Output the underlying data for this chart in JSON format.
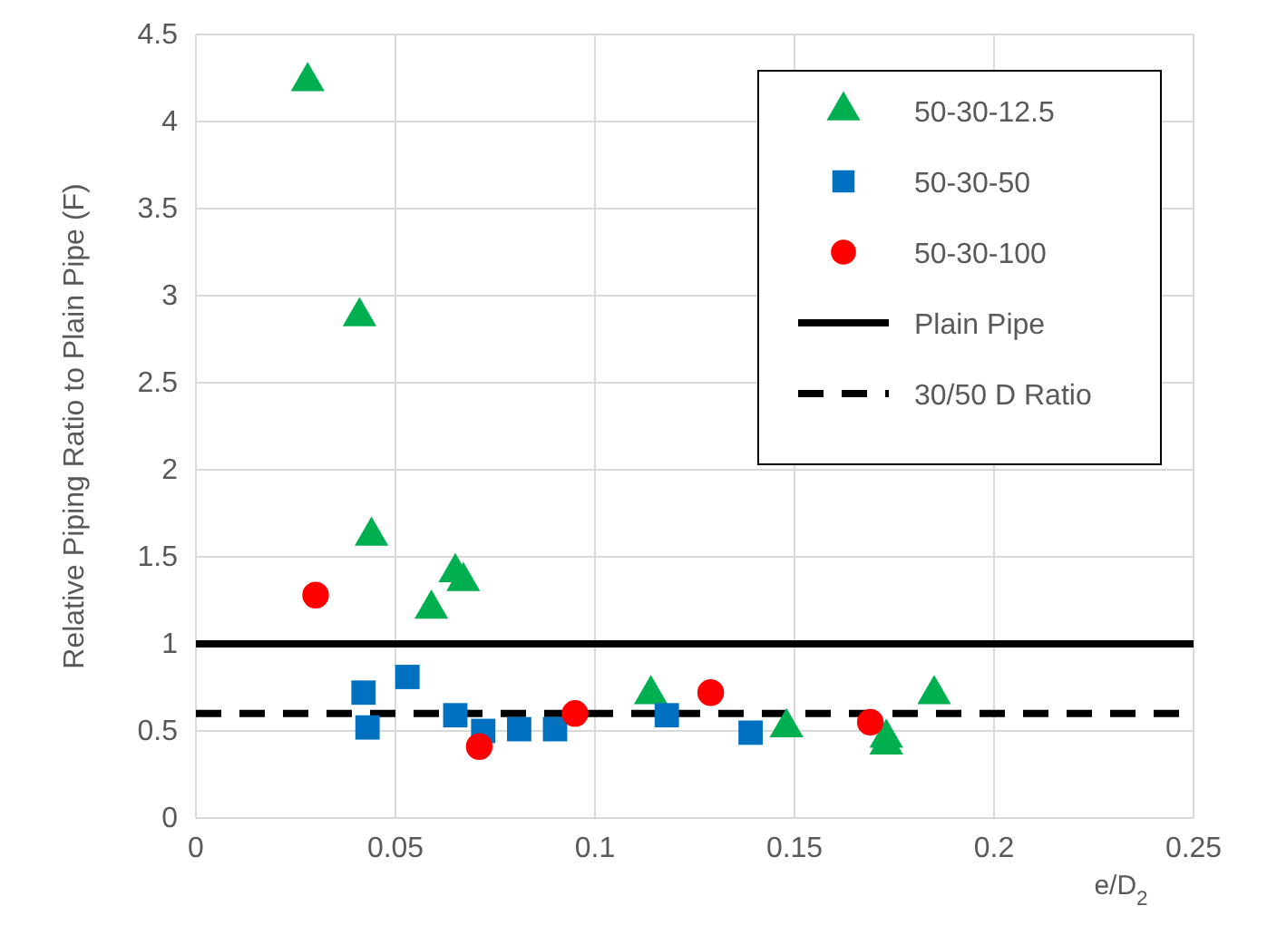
{
  "chart_data": {
    "type": "scatter",
    "xlabel": "e/D$_{2}$",
    "ylabel": "Relative Piping Ratio to Plain Pipe (F)",
    "xlim": [
      0,
      0.25
    ],
    "xticks": [
      0,
      0.05,
      0.1,
      0.15,
      0.2,
      0.25
    ],
    "ylim": [
      0,
      4.5
    ],
    "yticks": [
      0,
      0.5,
      1,
      1.5,
      2,
      2.5,
      3,
      3.5,
      4,
      4.5
    ],
    "grid": true,
    "legend": "top right",
    "series": [
      {
        "name": "50-30-12.5",
        "color": "#00b050",
        "marker": "triangle",
        "x": [
          0.028,
          0.041,
          0.044,
          0.059,
          0.065,
          0.067,
          0.114,
          0.148,
          0.173,
          0.173,
          0.185
        ],
        "values": [
          4.23,
          2.88,
          1.62,
          1.2,
          1.41,
          1.36,
          0.71,
          0.52,
          0.46,
          0.42,
          0.71
        ]
      },
      {
        "name": "50-30-50",
        "color": "#0070c0",
        "marker": "square",
        "x": [
          0.042,
          0.043,
          0.053,
          0.065,
          0.072,
          0.081,
          0.09,
          0.118,
          0.139
        ],
        "values": [
          0.72,
          0.52,
          0.81,
          0.59,
          0.5,
          0.51,
          0.51,
          0.59,
          0.49
        ]
      },
      {
        "name": "50-30-100",
        "color": "#ff0000",
        "marker": "circle",
        "x": [
          0.03,
          0.071,
          0.095,
          0.129,
          0.169
        ],
        "values": [
          1.28,
          0.41,
          0.6,
          0.72,
          0.55
        ]
      },
      {
        "name": "Plain Pipe",
        "type": "line",
        "color": "#000000",
        "line_style": "solid",
        "x": [
          0,
          0.25
        ],
        "values": [
          1,
          1
        ]
      },
      {
        "name": "30/50 D Ratio",
        "type": "line",
        "color": "#000000",
        "line_style": "dashed",
        "x": [
          0,
          0.25
        ],
        "values": [
          0.6,
          0.6
        ]
      }
    ]
  }
}
